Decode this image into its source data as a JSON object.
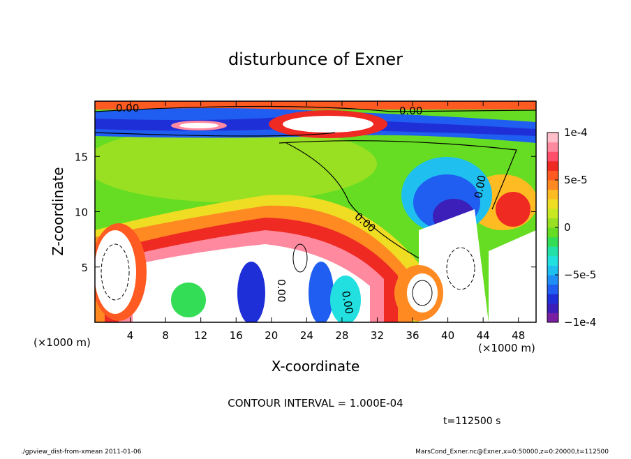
{
  "chart_data": {
    "type": "contour",
    "title": "disturbunce of Exner",
    "x_label": "X-coordinate",
    "y_label": "Z-coordinate",
    "x_unit": "(×1000 m)",
    "y_unit": "(×1000 m)",
    "xlim": [
      0,
      50
    ],
    "xticks": [
      4,
      8,
      12,
      16,
      20,
      24,
      28,
      32,
      36,
      40,
      44,
      48
    ],
    "ylim": [
      0,
      20
    ],
    "yticks": [
      5,
      10,
      15
    ],
    "clim": [
      -0.0001,
      0.0001
    ],
    "cticks": [
      {
        "value": -0.0001,
        "label": "−1e-4"
      },
      {
        "value": -5e-05,
        "label": "−5e-5"
      },
      0,
      {
        "value": 5e-05,
        "label": "5e-5"
      },
      {
        "value": 0.0001,
        "label": "1e-4"
      }
    ],
    "colormap": [
      "#7a1fa2",
      "#3b1fb8",
      "#1f2fd8",
      "#1f5ef0",
      "#1f8ff5",
      "#1fbff0",
      "#22e0e0",
      "#22e0a8",
      "#33dd55",
      "#66dd22",
      "#99e022",
      "#c8e822",
      "#eedd22",
      "#ffbb22",
      "#ff8a22",
      "#ff5a22",
      "#ee2a22",
      "#ff4f6a",
      "#ff8aa0",
      "#ffc0cc"
    ],
    "contour_labels": [
      "0.00",
      "0.00",
      "0.00",
      "0.00",
      "0.00",
      "0.00"
    ],
    "contour_interval": "CONTOUR INTERVAL = 1.000E-04",
    "time_label": "t=112500 s",
    "footer_left": "./gpview_dist-from-xmean  2011-01-06",
    "footer_right": "MarsCond_Exner.nc@Exner,x=0:50000,z=0:20000,t=112500"
  }
}
